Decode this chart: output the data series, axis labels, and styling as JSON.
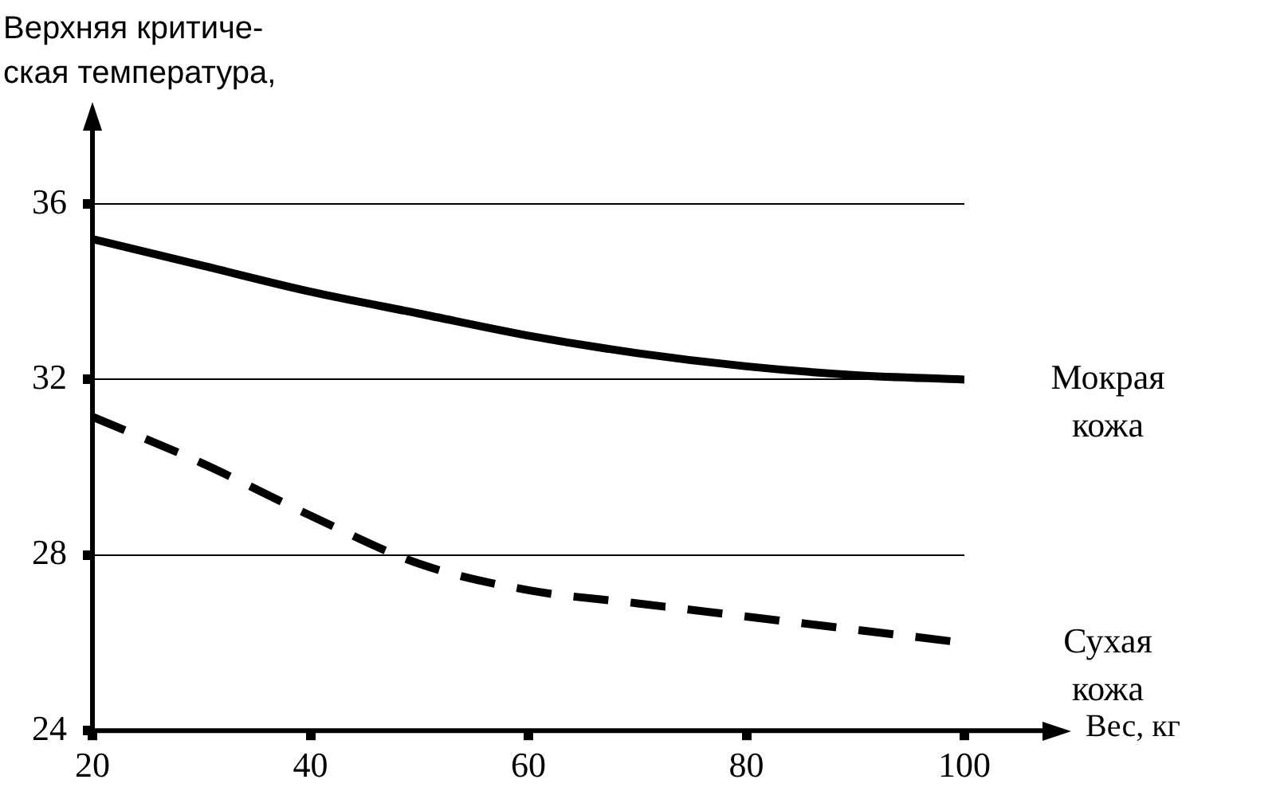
{
  "chart_data": {
    "type": "line",
    "ylabel": "Верхняя критиче-\nская температура,",
    "xlabel": "Вес, кг",
    "x": [
      20,
      30,
      40,
      50,
      60,
      70,
      80,
      90,
      100
    ],
    "series": [
      {
        "name": "Мокрая кожа",
        "color": "#000000",
        "line_style": "solid",
        "values": [
          35.2,
          34.6,
          34.0,
          33.5,
          33.0,
          32.6,
          32.3,
          32.1,
          32.0
        ]
      },
      {
        "name": "Сухая кожа",
        "color": "#000000",
        "line_style": "dashed",
        "values": [
          31.15,
          30.1,
          28.9,
          27.8,
          27.2,
          26.9,
          26.6,
          26.3,
          26.0
        ]
      }
    ],
    "xlim": [
      20,
      100
    ],
    "xticks": [
      20,
      40,
      60,
      80,
      100
    ],
    "ylim": [
      24,
      36
    ],
    "yticks": [
      24,
      28,
      32,
      36
    ],
    "grid": "y",
    "legend": false,
    "marker": "none"
  }
}
